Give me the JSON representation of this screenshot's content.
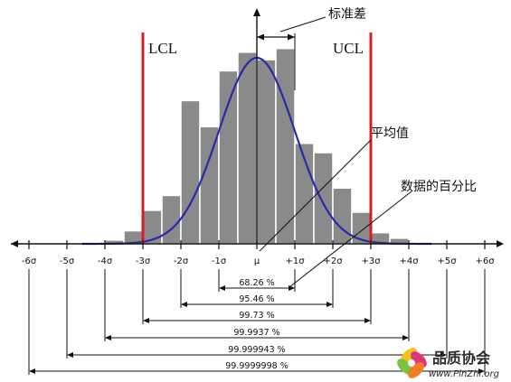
{
  "chart_data": {
    "type": "bar",
    "bars": [
      {
        "z": -3.75,
        "v": 0.02
      },
      {
        "z": -3.25,
        "v": 0.07
      },
      {
        "z": -2.75,
        "v": 0.18
      },
      {
        "z": -2.25,
        "v": 0.26
      },
      {
        "z": -1.75,
        "v": 0.77
      },
      {
        "z": -1.25,
        "v": 0.63
      },
      {
        "z": -0.75,
        "v": 0.93
      },
      {
        "z": -0.25,
        "v": 1.03
      },
      {
        "z": 0.25,
        "v": 0.99
      },
      {
        "z": 0.75,
        "v": 1.05
      },
      {
        "z": 1.25,
        "v": 0.54
      },
      {
        "z": 1.75,
        "v": 0.49
      },
      {
        "z": 2.25,
        "v": 0.3
      },
      {
        "z": 2.75,
        "v": 0.17
      },
      {
        "z": 3.25,
        "v": 0.06
      },
      {
        "z": 3.75,
        "v": 0.03
      }
    ],
    "curve": {
      "mean": 0,
      "sd": 1,
      "peak": 1.0
    },
    "xlim": [
      -6,
      6
    ],
    "ticks": [
      "-6σ",
      "-5σ",
      "-4σ",
      "-3σ",
      "-2σ",
      "-1σ",
      "μ",
      "+1σ",
      "+2σ",
      "+3σ",
      "+4σ",
      "+5σ",
      "+6σ"
    ],
    "control_limits": [
      {
        "label": "LCL",
        "z": -3
      },
      {
        "label": "UCL",
        "z": 3
      }
    ],
    "coverage": [
      {
        "k": 1,
        "label": "68.26 %"
      },
      {
        "k": 2,
        "label": "95.46 %"
      },
      {
        "k": 3,
        "label": "99.73 %"
      },
      {
        "k": 4,
        "label": "99.9937 %"
      },
      {
        "k": 5,
        "label": "99.999943 %"
      },
      {
        "k": 6,
        "label": "99.9999998 %"
      }
    ],
    "annotations": {
      "std_dev": "标准差",
      "mean": "平均值",
      "percentages": "数据的百分比"
    }
  },
  "colors": {
    "bar_fill": "#8a8a8a",
    "bar_stroke": "#ffffff",
    "curve": "#2a2aa8",
    "limit": "#d21f26",
    "axis": "#111111"
  },
  "logo": {
    "name": "品质协会",
    "url": "www.PinZhi.org"
  }
}
